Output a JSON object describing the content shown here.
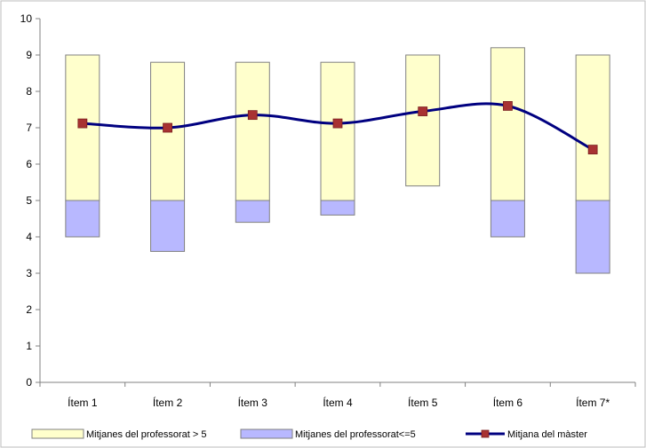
{
  "chart_data": {
    "type": "bar",
    "categories": [
      "Ítem 1",
      "Ítem 2",
      "Ítem 3",
      "Ítem 4",
      "Ítem 5",
      "Ítem 6",
      "Ítem 7*"
    ],
    "ylim": [
      0,
      10
    ],
    "yticks": [
      0,
      1,
      2,
      3,
      4,
      5,
      6,
      7,
      8,
      9,
      10
    ],
    "grid": false,
    "legend_position": "bottom",
    "series": [
      {
        "name": "Mitjanes del professorat > 5",
        "kind": "floating-bar",
        "color": "#ffffcc",
        "low": [
          5,
          5,
          5,
          5,
          5.4,
          5,
          5
        ],
        "high": [
          9,
          8.8,
          8.8,
          8.8,
          9,
          9.2,
          9
        ]
      },
      {
        "name": "Mitjanes del professorat<=5",
        "kind": "floating-bar",
        "color": "#b8b8ff",
        "low": [
          4,
          3.6,
          4.4,
          4.6,
          null,
          4,
          3
        ],
        "high": [
          5,
          5,
          5,
          5,
          null,
          5,
          5
        ]
      },
      {
        "name": "Mitjana del màster",
        "kind": "line",
        "color": "#000080",
        "marker_color": "#a83232",
        "values": [
          7.12,
          7.0,
          7.35,
          7.12,
          7.45,
          7.6,
          6.4
        ]
      }
    ]
  }
}
